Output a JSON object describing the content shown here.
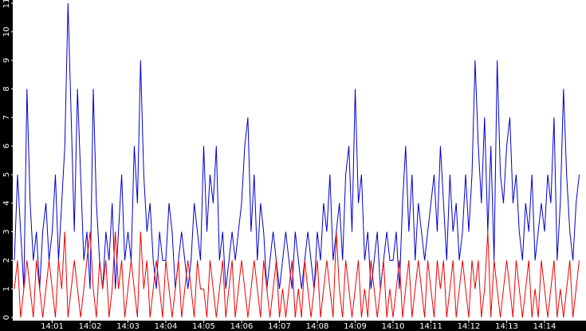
{
  "chart_data": {
    "type": "line",
    "categories": [
      null,
      null,
      null,
      null,
      null,
      null,
      null,
      null,
      null,
      null,
      null,
      null,
      "14:01",
      null,
      null,
      null,
      null,
      null,
      null,
      null,
      null,
      null,
      null,
      null,
      "14:02",
      null,
      null,
      null,
      null,
      null,
      null,
      null,
      null,
      null,
      null,
      null,
      "14:03",
      null,
      null,
      null,
      null,
      null,
      null,
      null,
      null,
      null,
      null,
      null,
      "14:04",
      null,
      null,
      null,
      null,
      null,
      null,
      null,
      null,
      null,
      null,
      null,
      "14:05",
      null,
      null,
      null,
      null,
      null,
      null,
      null,
      null,
      null,
      null,
      null,
      "14:06",
      null,
      null,
      null,
      null,
      null,
      null,
      null,
      null,
      null,
      null,
      null,
      "14:07",
      null,
      null,
      null,
      null,
      null,
      null,
      null,
      null,
      null,
      null,
      null,
      "14:08",
      null,
      null,
      null,
      null,
      null,
      null,
      null,
      null,
      null,
      null,
      null,
      "14:09",
      null,
      null,
      null,
      null,
      null,
      null,
      null,
      null,
      null,
      null,
      null,
      "14:10",
      null,
      null,
      null,
      null,
      null,
      null,
      null,
      null,
      null,
      null,
      null,
      "14:11",
      null,
      null,
      null,
      null,
      null,
      null,
      null,
      null,
      null,
      null,
      null,
      "14:12",
      null,
      null,
      null,
      null,
      null,
      null,
      null,
      null,
      null,
      null,
      null,
      "14:13",
      null,
      null,
      null,
      null,
      null,
      null,
      null,
      null,
      null,
      null,
      null,
      "14:14",
      null,
      null,
      null,
      null,
      null,
      null,
      null,
      null,
      null,
      null,
      null
    ],
    "series": [
      {
        "color": "#0000cc",
        "values": [
          2,
          5,
          3,
          1,
          8,
          4,
          2,
          3,
          1,
          3,
          4,
          2,
          3,
          5,
          2,
          4,
          6,
          11,
          7,
          3,
          8,
          5,
          2,
          3,
          1,
          8,
          4,
          2,
          1,
          3,
          2,
          4,
          1,
          3,
          5,
          2,
          3,
          2,
          6,
          4,
          9,
          5,
          3,
          4,
          2,
          1,
          3,
          2,
          2,
          4,
          3,
          1,
          2,
          3,
          2,
          1,
          2,
          4,
          3,
          2,
          6,
          3,
          5,
          4,
          6,
          2,
          3,
          1,
          2,
          3,
          2,
          3,
          4,
          6,
          7,
          3,
          5,
          2,
          4,
          3,
          1,
          2,
          3,
          2,
          1,
          2,
          3,
          2,
          1,
          3,
          2,
          1,
          2,
          3,
          2,
          1,
          3,
          2,
          4,
          3,
          5,
          2,
          3,
          4,
          2,
          5,
          6,
          3,
          8,
          4,
          5,
          2,
          3,
          1,
          2,
          3,
          1,
          2,
          3,
          2,
          2,
          3,
          1,
          4,
          6,
          3,
          5,
          2,
          4,
          3,
          2,
          3,
          4,
          5,
          3,
          6,
          4,
          2,
          5,
          3,
          4,
          2,
          3,
          5,
          3,
          5,
          9,
          6,
          4,
          7,
          3,
          6,
          2,
          9,
          5,
          4,
          6,
          7,
          4,
          5,
          3,
          2,
          4,
          3,
          5,
          2,
          3,
          4,
          3,
          5,
          4,
          7,
          2,
          4,
          8,
          5,
          3,
          2,
          4,
          5
        ]
      },
      {
        "color": "#ee0000",
        "values": [
          1,
          2,
          0,
          1,
          2,
          1,
          0,
          2,
          1,
          0,
          1,
          2,
          1,
          0,
          2,
          1,
          3,
          0,
          1,
          2,
          1,
          0,
          1,
          2,
          3,
          1,
          0,
          2,
          1,
          2,
          0,
          1,
          3,
          1,
          2,
          0,
          1,
          2,
          1,
          0,
          3,
          1,
          2,
          0,
          1,
          2,
          1,
          0,
          2,
          1,
          0,
          1,
          2,
          0,
          1,
          2,
          1,
          0,
          2,
          1,
          1,
          0,
          2,
          1,
          0,
          1,
          2,
          0,
          1,
          2,
          0,
          1,
          2,
          1,
          0,
          1,
          2,
          1,
          0,
          2,
          1,
          0,
          1,
          2,
          0,
          1,
          0,
          1,
          2,
          0,
          1,
          0,
          2,
          1,
          0,
          1,
          2,
          0,
          1,
          2,
          1,
          0,
          3,
          1,
          0,
          2,
          1,
          0,
          1,
          2,
          0,
          1,
          0,
          2,
          1,
          0,
          1,
          2,
          0,
          1,
          0,
          1,
          2,
          0,
          1,
          2,
          0,
          1,
          2,
          1,
          0,
          2,
          1,
          0,
          2,
          1,
          2,
          0,
          1,
          2,
          0,
          1,
          2,
          1,
          0,
          2,
          1,
          2,
          0,
          1,
          3,
          0,
          2,
          1,
          0,
          1,
          2,
          1,
          0,
          2,
          1,
          0,
          1,
          2,
          0,
          1,
          0,
          2,
          1,
          0,
          1,
          2,
          0,
          1,
          0,
          1,
          2,
          0,
          1,
          2
        ]
      }
    ],
    "ylim": [
      0,
      11
    ],
    "yticks": [
      0,
      1,
      2,
      3,
      4,
      5,
      6,
      7,
      8,
      9,
      10,
      11
    ]
  }
}
